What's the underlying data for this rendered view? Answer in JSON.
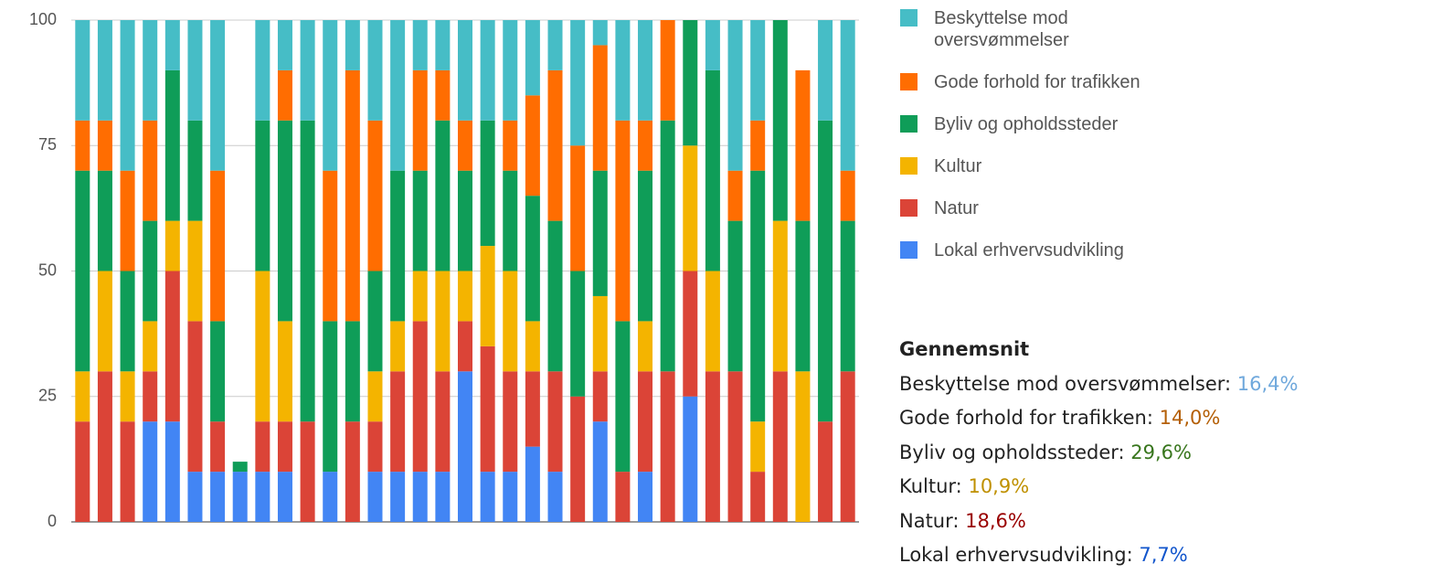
{
  "chart_data": {
    "type": "stacked_bar",
    "categories": [
      null,
      null,
      null,
      null,
      null,
      null,
      null,
      null,
      null,
      null,
      null,
      null,
      null,
      null,
      null,
      null,
      null,
      null,
      null,
      null,
      null,
      null,
      null,
      null,
      null,
      null,
      null,
      null,
      null,
      null,
      null,
      null,
      null,
      null,
      null
    ],
    "series": [
      {
        "name": "Beskyttelse mod oversvømmelser",
        "color": "#46bdc6",
        "values": [
          20,
          20,
          30,
          20,
          10,
          20,
          30,
          0,
          20,
          10,
          20,
          30,
          10,
          20,
          30,
          10,
          10,
          20,
          20,
          20,
          15,
          10,
          25,
          5,
          20,
          20,
          0,
          0,
          10,
          30,
          20,
          0,
          0,
          20,
          30
        ]
      },
      {
        "name": "Gode forhold for trafikken",
        "color": "#ff6d01",
        "values": [
          10,
          10,
          20,
          20,
          0,
          0,
          30,
          0,
          0,
          10,
          0,
          30,
          50,
          30,
          0,
          20,
          10,
          10,
          0,
          10,
          20,
          30,
          25,
          25,
          40,
          10,
          20,
          0,
          0,
          10,
          10,
          0,
          30,
          0,
          10
        ]
      },
      {
        "name": "Byliv og opholdssteder",
        "color": "#0f9d58",
        "values": [
          40,
          20,
          20,
          20,
          30,
          20,
          20,
          2,
          30,
          40,
          60,
          30,
          20,
          20,
          30,
          20,
          30,
          20,
          25,
          20,
          25,
          30,
          25,
          25,
          30,
          30,
          50,
          25,
          40,
          30,
          50,
          40,
          30,
          60,
          30
        ]
      },
      {
        "name": "Kultur",
        "color": "#f4b400",
        "values": [
          10,
          20,
          10,
          10,
          10,
          20,
          0,
          0,
          30,
          20,
          0,
          0,
          0,
          10,
          10,
          10,
          20,
          10,
          20,
          20,
          10,
          0,
          0,
          15,
          0,
          10,
          0,
          25,
          20,
          0,
          10,
          30,
          30,
          0,
          0
        ]
      },
      {
        "name": "Natur",
        "color": "#db4437",
        "values": [
          20,
          30,
          20,
          10,
          30,
          30,
          10,
          0,
          10,
          10,
          20,
          0,
          20,
          10,
          20,
          30,
          20,
          10,
          25,
          20,
          15,
          20,
          25,
          10,
          10,
          20,
          30,
          25,
          30,
          30,
          10,
          30,
          0,
          20,
          30
        ]
      },
      {
        "name": "Lokal erhvervsudvikling",
        "color": "#4285f4",
        "values": [
          0,
          0,
          0,
          20,
          20,
          10,
          10,
          10,
          10,
          10,
          0,
          10,
          0,
          10,
          10,
          10,
          10,
          30,
          10,
          10,
          15,
          10,
          0,
          20,
          0,
          10,
          0,
          25,
          0,
          0,
          0,
          0,
          0,
          0,
          0
        ]
      }
    ],
    "ylim": [
      0,
      100
    ],
    "yticks": [
      0,
      25,
      50,
      75,
      100
    ],
    "grid": true
  },
  "averages": {
    "title": "Gennemsnit",
    "items": [
      {
        "name": "Beskyttelse mod oversvømmelser:",
        "value": "16,4%",
        "color": "#6fa8dc"
      },
      {
        "name": "Gode forhold for trafikken:",
        "value": "14,0%",
        "color": "#b45f06"
      },
      {
        "name": "Byliv og opholdssteder:",
        "value": "29,6%",
        "color": "#38761d"
      },
      {
        "name": "Kultur:",
        "value": "10,9%",
        "color": "#bf9000"
      },
      {
        "name": "Natur:",
        "value": "18,6%",
        "color": "#990000"
      },
      {
        "name": "Lokal erhvervsudvikling:",
        "value": "7,7%",
        "color": "#1155cc"
      }
    ]
  }
}
